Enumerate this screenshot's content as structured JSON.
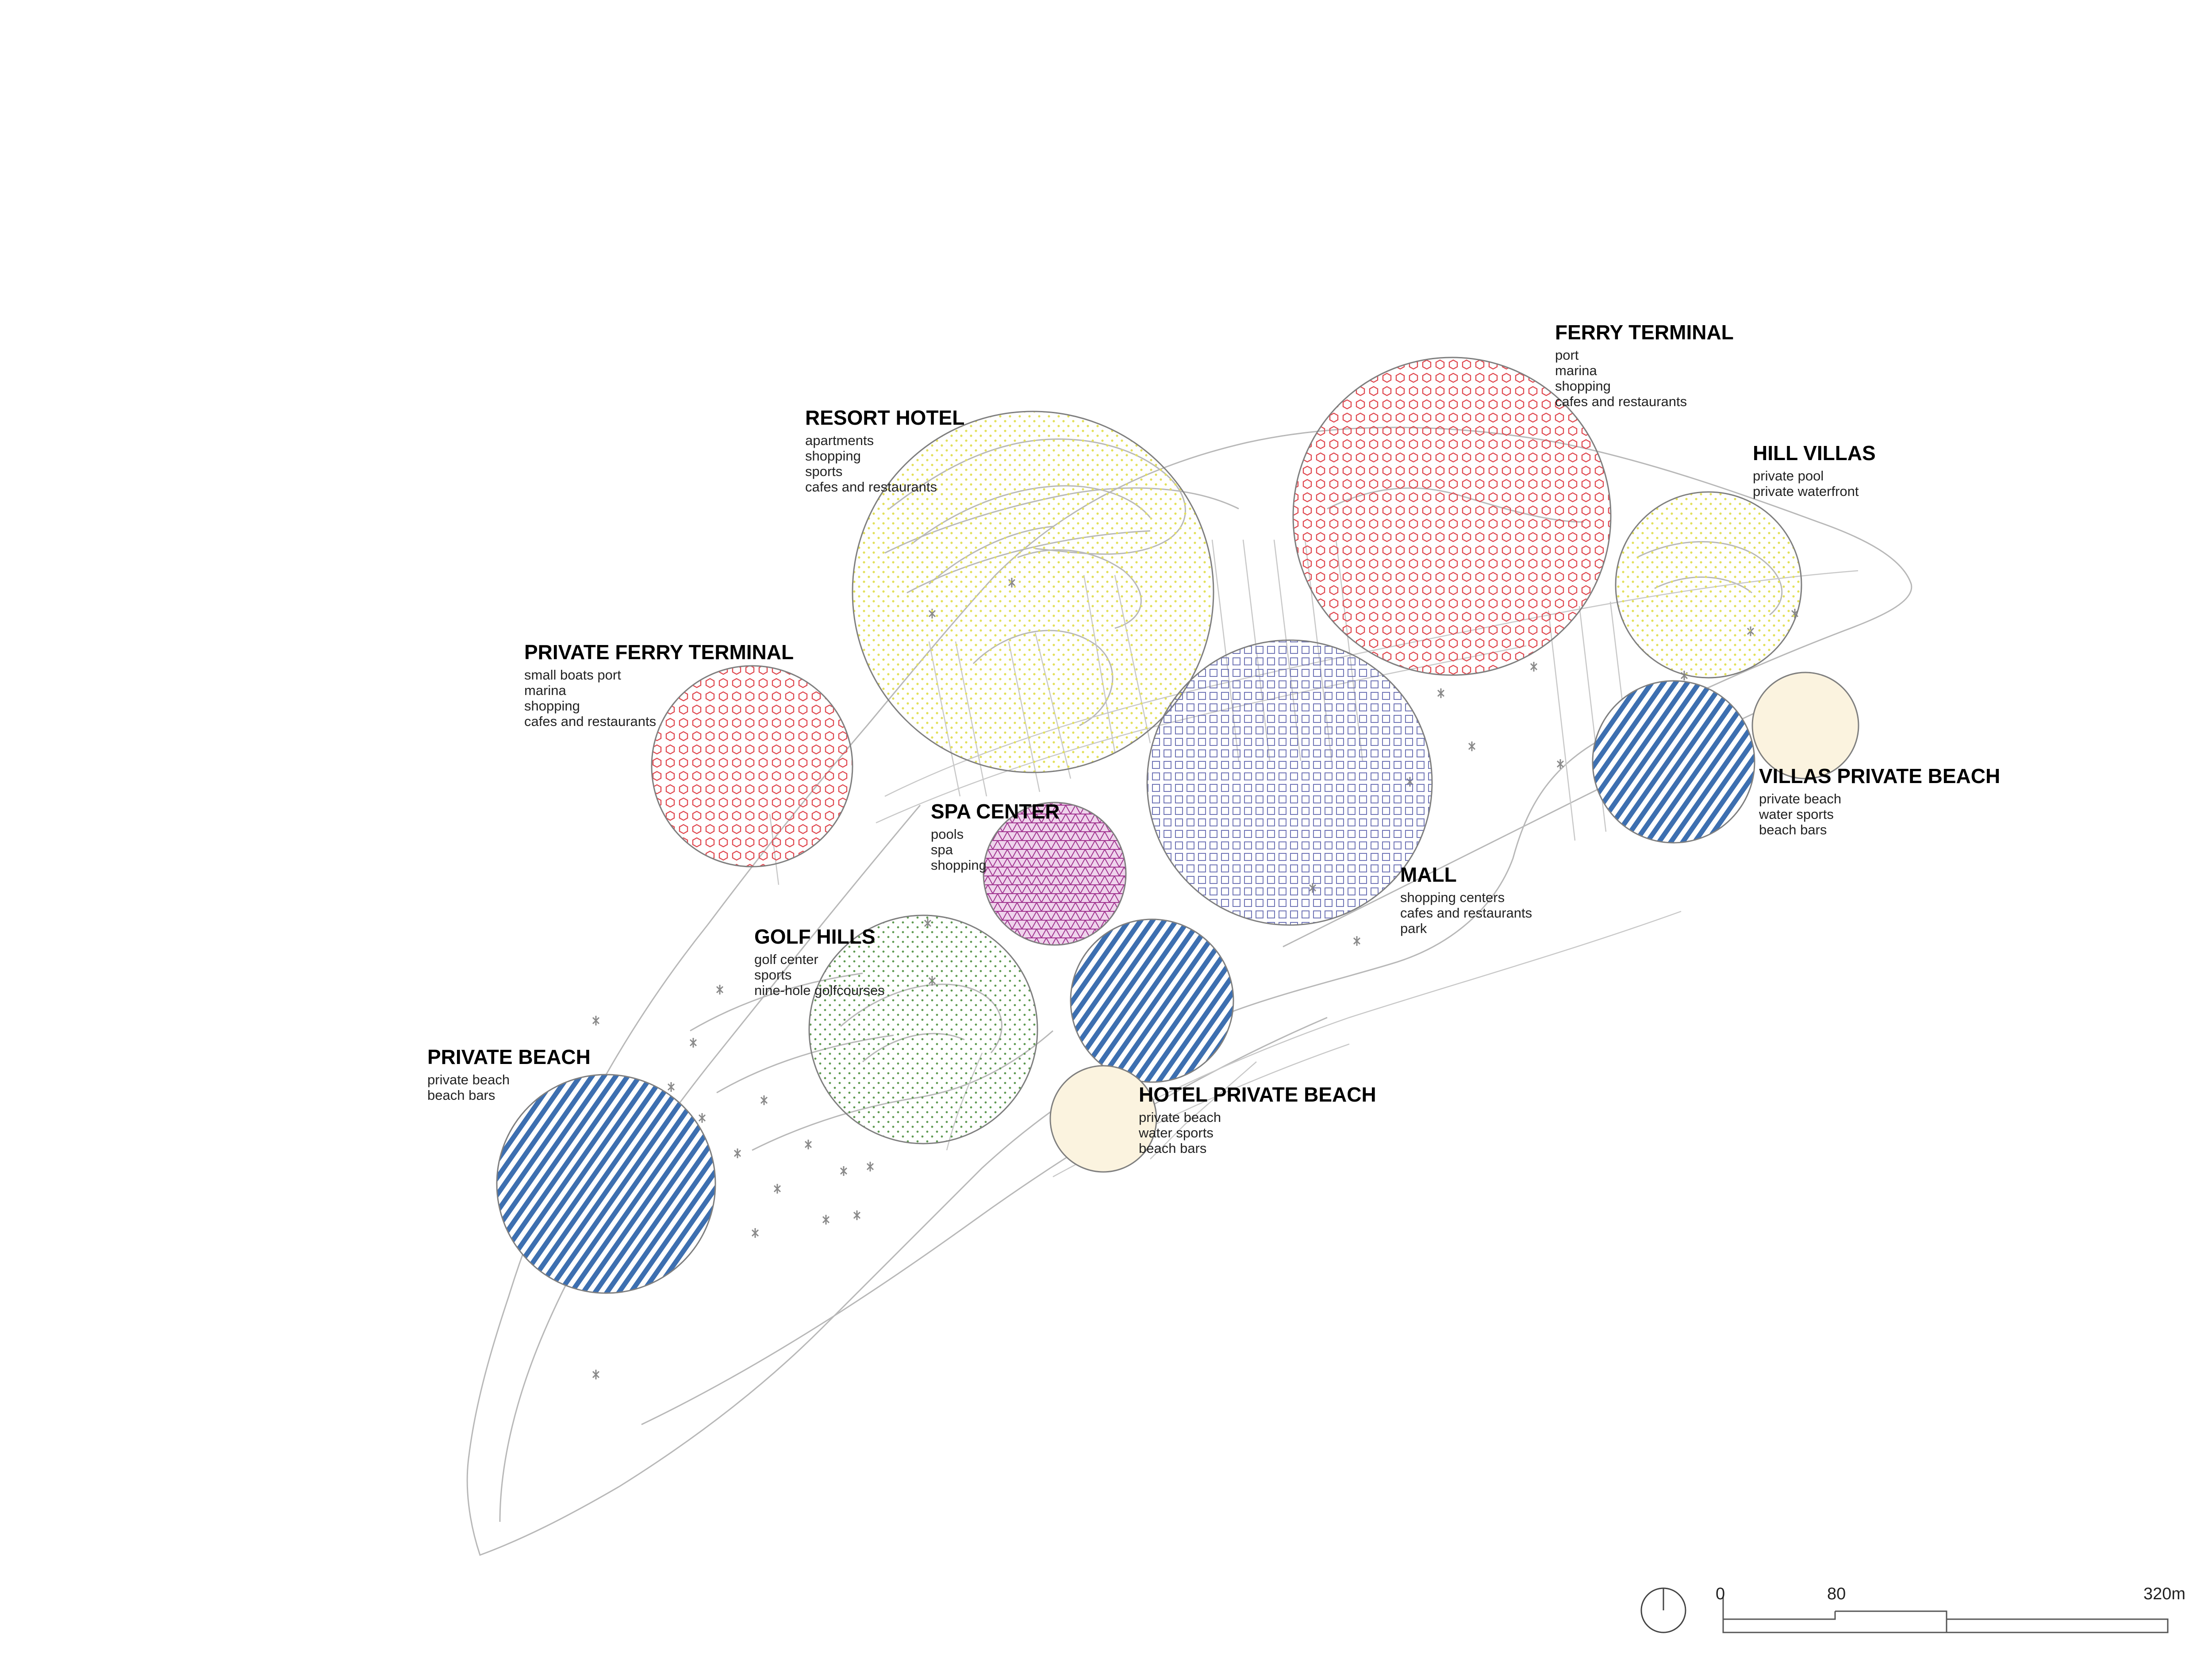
{
  "zones": [
    {
      "id": "resort-hotel",
      "title": "RESORT HOTEL",
      "lines": [
        "apartments",
        "shopping",
        "sports",
        "cafes and restaurants"
      ],
      "pattern": "dots-yellow"
    },
    {
      "id": "ferry-terminal",
      "title": "FERRY TERMINAL",
      "lines": [
        "port",
        "marina",
        "shopping",
        "cafes and restaurants"
      ],
      "pattern": "hex-red"
    },
    {
      "id": "hill-villas",
      "title": "HILL VILLAS",
      "lines": [
        "private pool",
        "private waterfront"
      ],
      "pattern": "dots-yellow"
    },
    {
      "id": "private-ferry-terminal",
      "title": "PRIVATE FERRY TERMINAL",
      "lines": [
        "small boats port",
        "marina",
        "shopping",
        "cafes and restaurants"
      ],
      "pattern": "hex-red"
    },
    {
      "id": "spa-center",
      "title": "SPA CENTER",
      "lines": [
        "pools",
        "spa",
        "shopping"
      ],
      "pattern": "tri-purple"
    },
    {
      "id": "villas-private-beach",
      "title": "VILLAS PRIVATE BEACH",
      "lines": [
        "private beach",
        "water sports",
        "beach bars"
      ],
      "pattern": "stripes-blue"
    },
    {
      "id": "mall",
      "title": "MALL",
      "lines": [
        "shopping centers",
        "cafes and restaurants",
        "park"
      ],
      "pattern": "grid-blue"
    },
    {
      "id": "golf-hills",
      "title": "GOLF HILLS",
      "lines": [
        "golf center",
        "sports",
        "nine-hole golfcourses"
      ],
      "pattern": "dots-green"
    },
    {
      "id": "private-beach",
      "title": "PRIVATE BEACH",
      "lines": [
        "private beach",
        "beach bars"
      ],
      "pattern": "stripes-blue"
    },
    {
      "id": "hotel-private-beach",
      "title": "HOTEL PRIVATE BEACH",
      "lines": [
        "private beach",
        "water sports",
        "beach bars"
      ],
      "pattern": "stripes-blue"
    }
  ],
  "extra_circles": [
    {
      "id": "villas-beach-sand",
      "pattern": "sand"
    },
    {
      "id": "hotel-beach-sand",
      "pattern": "sand"
    }
  ],
  "scale_bar": {
    "labels": [
      "0",
      "80",
      "320m"
    ]
  },
  "colors": {
    "hex_red": "#e0484f",
    "dots_yellow": "#e3e05a",
    "tri_purple": "#a0338f",
    "stripes_blue": "#3d6fb0",
    "grid_blue": "#6f74b5",
    "dots_green": "#5f9a52",
    "sand": "#fbf3df",
    "outline": "#9a9a9a"
  }
}
